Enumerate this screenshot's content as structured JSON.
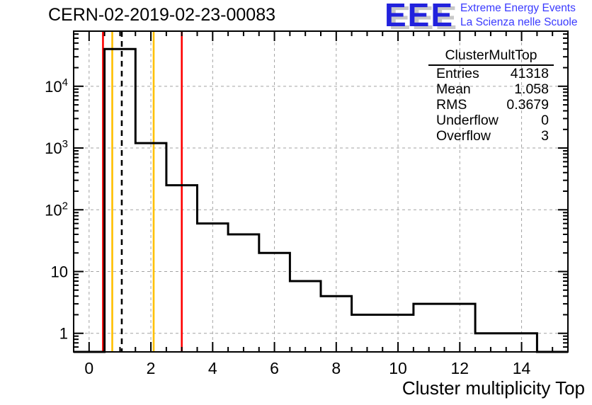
{
  "header": {
    "title": "CERN-02-2019-02-23-00083"
  },
  "logo": {
    "letters": "EEE",
    "line1": "Extreme Energy Events",
    "line2": "La Scienza nelle Scuole",
    "letters_color": "#2222dd",
    "text_color": "#3a3aff",
    "shadow_color": "#c8c8c8"
  },
  "stats": {
    "title": "ClusterMultTop",
    "rows": [
      {
        "label": "Entries",
        "value": "41318"
      },
      {
        "label": "Mean",
        "value": "1.058"
      },
      {
        "label": "RMS",
        "value": "0.3679"
      },
      {
        "label": "Underflow",
        "value": "0"
      },
      {
        "label": "Overflow",
        "value": "3"
      }
    ]
  },
  "chart_data": {
    "type": "bar",
    "subtype": "step-histogram",
    "title": "CERN-02-2019-02-23-00083",
    "xlabel": "Cluster multiplicity Top",
    "ylabel": "",
    "x_range": [
      -0.5,
      15.5
    ],
    "y_scale": "log",
    "y_range": [
      0.5,
      78000
    ],
    "grid": "dashed",
    "grid_color": "#a3a3a3",
    "line_color": "#000000",
    "bin_edges_start": -0.5,
    "bin_width": 1,
    "categories": [
      "0",
      "1",
      "2",
      "3",
      "4",
      "5",
      "6",
      "7",
      "8",
      "9",
      "10",
      "11",
      "12",
      "13",
      "14",
      "15"
    ],
    "values": [
      0,
      40000,
      1200,
      250,
      60,
      40,
      20,
      7,
      4,
      2,
      2,
      3,
      3,
      1,
      1,
      0
    ],
    "x_tick_values": [
      0,
      2,
      4,
      6,
      8,
      10,
      12,
      14
    ],
    "x_tick_labels": [
      "0",
      "2",
      "4",
      "6",
      "8",
      "10",
      "12",
      "14"
    ],
    "x_minor_step": 0.5,
    "y_tick_labels": [
      {
        "v": 1,
        "base": "1",
        "exp": ""
      },
      {
        "v": 10,
        "base": "10",
        "exp": ""
      },
      {
        "v": 100,
        "base": "10",
        "exp": "2"
      },
      {
        "v": 1000,
        "base": "10",
        "exp": "3"
      },
      {
        "v": 10000,
        "base": "10",
        "exp": "4"
      }
    ],
    "marker_lines": [
      {
        "name": "red-lower-threshold",
        "x": 0.45,
        "color": "#ff0000",
        "style": "solid"
      },
      {
        "name": "orange-lower-threshold",
        "x": 0.75,
        "color": "#ffc000",
        "style": "solid"
      },
      {
        "name": "mean-line",
        "x": 1.058,
        "color": "#000000",
        "style": "dashed"
      },
      {
        "name": "orange-upper-threshold",
        "x": 2.09,
        "color": "#ffc000",
        "style": "solid"
      },
      {
        "name": "red-upper-threshold",
        "x": 3.0,
        "color": "#ff0000",
        "style": "solid"
      }
    ],
    "legend": "none"
  }
}
